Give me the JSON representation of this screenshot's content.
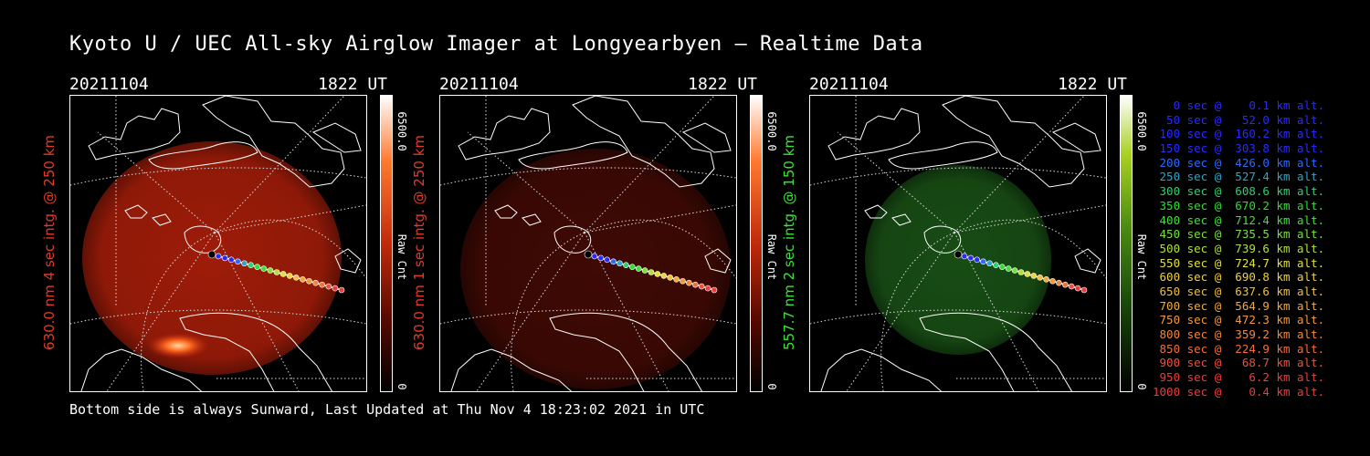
{
  "title": "Kyoto U / UEC All-sky Airglow Imager at Longyearbyen — Realtime Data",
  "footer": "Bottom side is always Sunward, Last Updated at Thu Nov  4 18:23:02 2021 in UTC",
  "panels": [
    {
      "date": "20211104",
      "time": "1822 UT",
      "ylabel": "630.0 nm 4 sec intg. @ 250 km",
      "label_color": "#e03a2a",
      "cbar_max": "6500.0",
      "cbar_min": "0",
      "cbar_unit": "Raw Cnt",
      "colormap": "red",
      "glow_color": "#c1220b",
      "glow_opacity": 0.82
    },
    {
      "date": "20211104",
      "time": "1822 UT",
      "ylabel": "630.0 nm 1 sec intg. @ 250 km",
      "label_color": "#e03a2a",
      "cbar_max": "6500.0",
      "cbar_min": "0",
      "cbar_unit": "Raw Cnt",
      "colormap": "red",
      "glow_color": "#4a0b05",
      "glow_opacity": 0.85
    },
    {
      "date": "20211104",
      "time": "1822 UT",
      "ylabel": "557.7 nm 2 sec intg. @ 150 km",
      "label_color": "#3ee03a",
      "cbar_max": "6500.0",
      "cbar_min": "0",
      "cbar_unit": "Raw Cnt",
      "colormap": "green",
      "glow_color": "#1c5a18",
      "glow_opacity": 0.85
    }
  ],
  "legend": [
    {
      "text": "   0 sec @    0.1 km alt.",
      "color": "#2a2aff"
    },
    {
      "text": "  50 sec @   52.0 km alt.",
      "color": "#2a2aff"
    },
    {
      "text": " 100 sec @  160.2 km alt.",
      "color": "#2a2aff"
    },
    {
      "text": " 150 sec @  303.8 km alt.",
      "color": "#2a2aff"
    },
    {
      "text": " 200 sec @  426.0 km alt.",
      "color": "#2a6aff"
    },
    {
      "text": " 250 sec @  527.4 km alt.",
      "color": "#2aa6c8"
    },
    {
      "text": " 300 sec @  608.6 km alt.",
      "color": "#2ad072"
    },
    {
      "text": " 350 sec @  670.2 km alt.",
      "color": "#2ae02a"
    },
    {
      "text": " 400 sec @  712.4 km alt.",
      "color": "#3ee03a"
    },
    {
      "text": " 450 sec @  735.5 km alt.",
      "color": "#7ae03a"
    },
    {
      "text": " 500 sec @  739.6 km alt.",
      "color": "#b4e03a"
    },
    {
      "text": " 550 sec @  724.7 km alt.",
      "color": "#e0e03a"
    },
    {
      "text": " 600 sec @  690.8 km alt.",
      "color": "#f0d23a"
    },
    {
      "text": " 650 sec @  637.6 km alt.",
      "color": "#f0c03a"
    },
    {
      "text": " 700 sec @  564.9 km alt.",
      "color": "#f0aa3a"
    },
    {
      "text": " 750 sec @  472.3 km alt.",
      "color": "#f09a3a"
    },
    {
      "text": " 800 sec @  359.2 km alt.",
      "color": "#f0883a"
    },
    {
      "text": " 850 sec @  224.9 km alt.",
      "color": "#f0703a"
    },
    {
      "text": " 900 sec @   68.7 km alt.",
      "color": "#f0503a"
    },
    {
      "text": " 950 sec @    6.2 km alt.",
      "color": "#f03a3a"
    },
    {
      "text": "1000 sec @    0.4 km alt.",
      "color": "#f03a3a"
    }
  ]
}
